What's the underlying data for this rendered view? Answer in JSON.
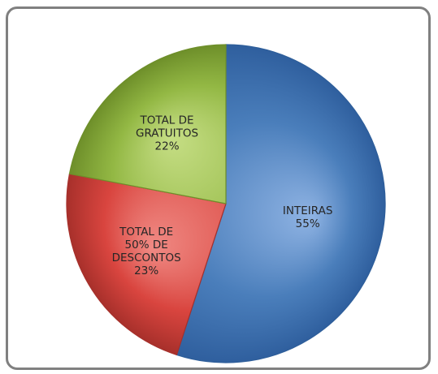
{
  "chart_data": {
    "type": "pie",
    "slices": [
      {
        "label_lines": [
          "INTEIRAS"
        ],
        "percent_label": "55%",
        "value": 55,
        "color": "#4A7EBB",
        "stroke": "#2E5E9A",
        "gradient": [
          "#8FB3E3",
          "#4A7EBB",
          "#2F5F9E"
        ]
      },
      {
        "label_lines": [
          "TOTAL DE",
          "50% DE",
          "DESCONTOS"
        ],
        "percent_label": "23%",
        "value": 23,
        "color": "#D9453F",
        "stroke": "#A6302B",
        "gradient": [
          "#F08A84",
          "#D9453F",
          "#A8302B"
        ]
      },
      {
        "label_lines": [
          "TOTAL DE",
          "GRATUITOS"
        ],
        "percent_label": "22%",
        "value": 22,
        "color": "#93B844",
        "stroke": "#6E8F2A",
        "gradient": [
          "#C6DE85",
          "#93B844",
          "#6E8F2A"
        ]
      }
    ],
    "start_angle_deg": 0,
    "direction": "clockwise",
    "legend": "none",
    "data_labels": "inside"
  }
}
